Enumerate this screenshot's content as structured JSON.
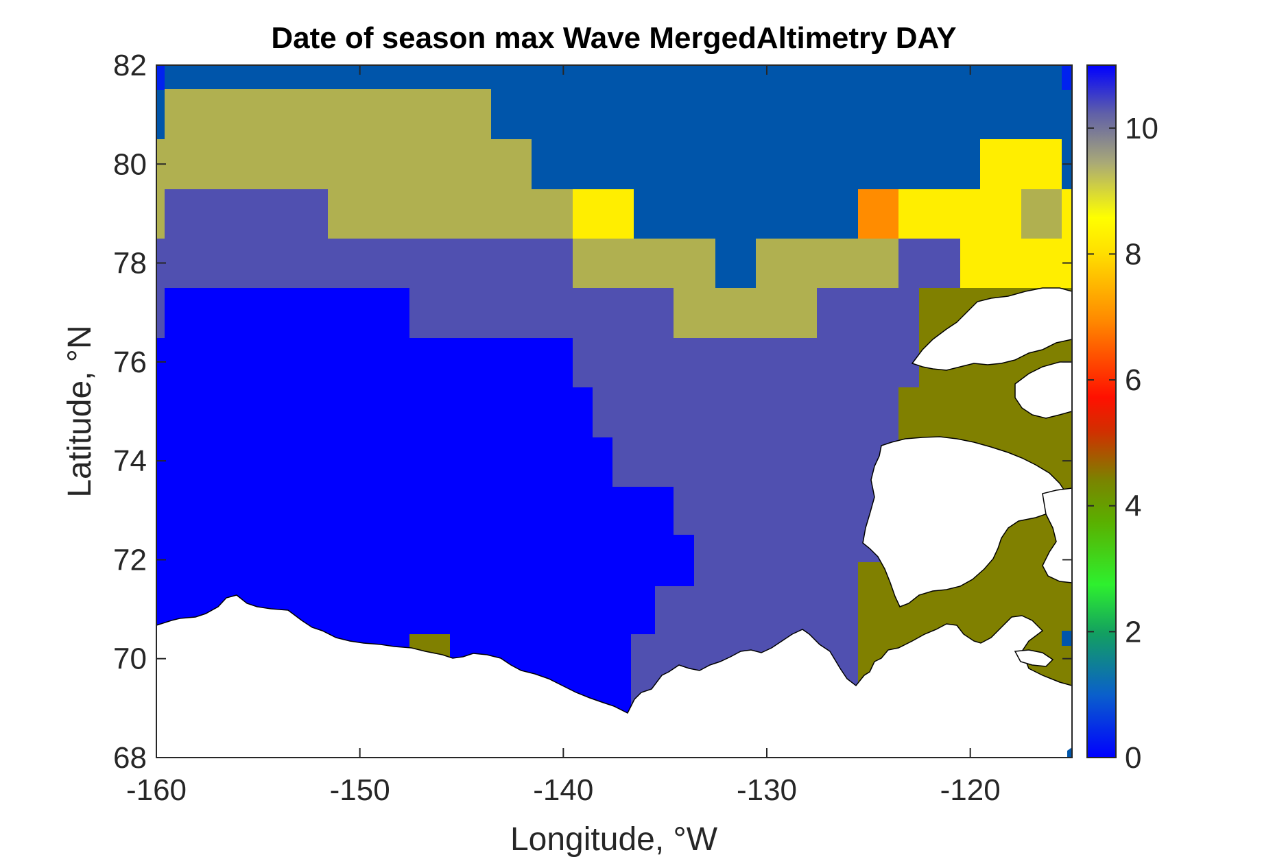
{
  "chart_data": {
    "type": "heatmap",
    "title": "Date of season max Wave MergedAltimetry DAY",
    "xlabel": "Longitude, °W",
    "ylabel": "Latitude, °N",
    "xlim": [
      -160,
      -115
    ],
    "ylim": [
      68,
      82
    ],
    "x_ticks": [
      -160,
      -150,
      -140,
      -130,
      -120
    ],
    "y_ticks": [
      68,
      70,
      72,
      74,
      76,
      78,
      80,
      82
    ],
    "colorbar": {
      "range": [
        0,
        11
      ],
      "ticks": [
        0,
        2,
        4,
        6,
        8,
        10
      ],
      "colormap": [
        "#0000ff",
        "#0a6ab4",
        "#10c050",
        "#2eff2e",
        "#7a8a00",
        "#ff2000",
        "#ff8a00",
        "#ffd800",
        "#ffff00",
        "#a8a878",
        "#5555aa",
        "#0000ff"
      ]
    },
    "colors": {
      "level_0": "#0000ff",
      "level_4": "#808000",
      "level_7": "#ff8c00",
      "level_8": "#ffee00",
      "level_9": "#b0b050",
      "level_10": "#5050b0",
      "level_11": "#0055aa",
      "land": "#ffffff"
    },
    "regions": [
      {
        "value": 11,
        "color": "#0055aa",
        "lon": [
          -160,
          -115
        ],
        "lat": [
          80.5,
          82
        ]
      },
      {
        "value": 9,
        "color": "#b0b050",
        "lon": [
          -160,
          -141
        ],
        "lat": [
          78.5,
          81.5
        ]
      },
      {
        "value": 10,
        "color": "#5050b0",
        "lon": [
          -160,
          -123
        ],
        "lat": [
          76.5,
          79.5
        ]
      },
      {
        "value": 9,
        "color": "#b0b050",
        "lon": [
          -139,
          -123
        ],
        "lat": [
          76.5,
          78.5
        ]
      },
      {
        "value": 8,
        "color": "#ffee00",
        "lon": [
          -139,
          -136
        ],
        "lat": [
          78.5,
          79.5
        ]
      },
      {
        "value": 7,
        "color": "#ff8c00",
        "lon": [
          -125,
          -123
        ],
        "lat": [
          78.5,
          79.5
        ]
      },
      {
        "value": 8,
        "color": "#ffee00",
        "lon": [
          -123,
          -115
        ],
        "lat": [
          77.5,
          80.5
        ]
      },
      {
        "value": 0,
        "color": "#0000ff",
        "lon": [
          -160,
          -133
        ],
        "lat": [
          69,
          77.5
        ]
      },
      {
        "value": 10,
        "color": "#5050b0",
        "lon": [
          -140,
          -125
        ],
        "lat": [
          69,
          76.5
        ]
      },
      {
        "value": 4,
        "color": "#808000",
        "lon": [
          -125,
          -115
        ],
        "lat": [
          69,
          77.5
        ]
      }
    ]
  }
}
